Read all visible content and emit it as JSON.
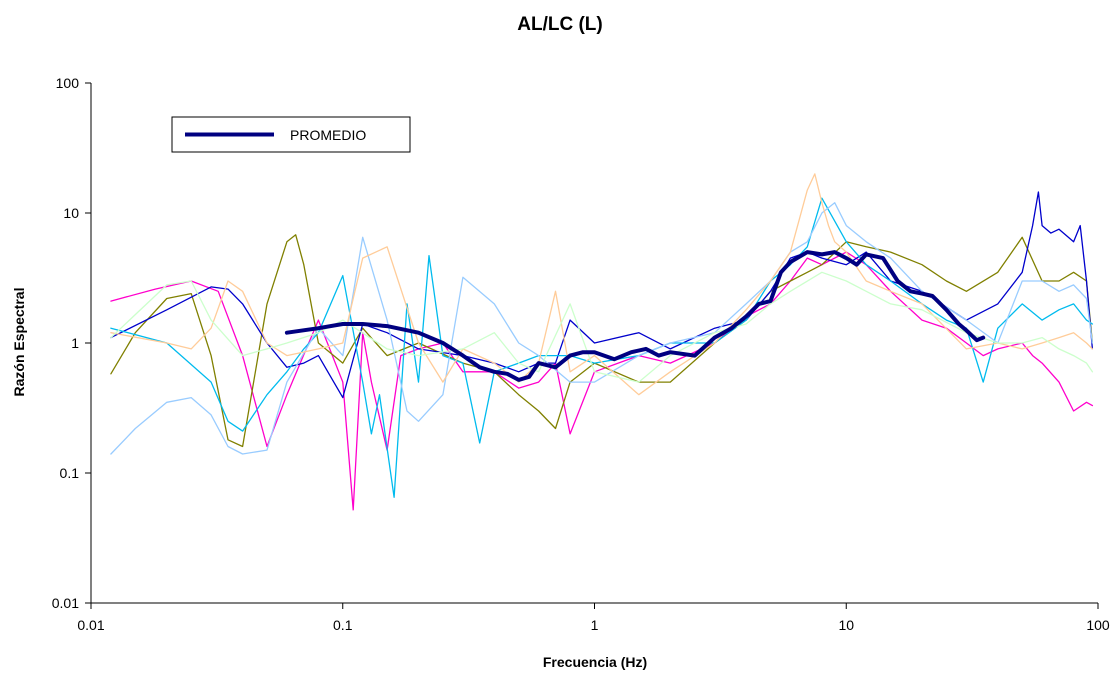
{
  "chart_data": {
    "type": "line",
    "title": "AL/LC (L)",
    "xlabel": "Frecuencia (Hz)",
    "ylabel": "Razón Espectral",
    "xscale": "log",
    "yscale": "log",
    "xlim": [
      0.01,
      100
    ],
    "ylim": [
      0.01,
      100
    ],
    "x_ticks": [
      {
        "value": 0.01,
        "label": "0.01"
      },
      {
        "value": 0.1,
        "label": "0.1"
      },
      {
        "value": 1,
        "label": "1"
      },
      {
        "value": 10,
        "label": "10"
      },
      {
        "value": 100,
        "label": "100"
      }
    ],
    "y_ticks": [
      {
        "value": 0.01,
        "label": "0.01"
      },
      {
        "value": 0.1,
        "label": "0.1"
      },
      {
        "value": 1,
        "label": "1"
      },
      {
        "value": 10,
        "label": "10"
      },
      {
        "value": 100,
        "label": "100"
      }
    ],
    "grid": false,
    "legend": {
      "position": "top-left",
      "entries": [
        "PROMEDIO"
      ]
    },
    "series": [
      {
        "name": "PROMEDIO",
        "color": "#000080",
        "x": [
          0.06,
          0.08,
          0.1,
          0.12,
          0.15,
          0.2,
          0.25,
          0.3,
          0.35,
          0.4,
          0.45,
          0.5,
          0.55,
          0.6,
          0.7,
          0.8,
          0.9,
          1.0,
          1.2,
          1.4,
          1.6,
          1.8,
          2.0,
          2.5,
          3.0,
          3.5,
          4.0,
          4.5,
          5.0,
          5.5,
          6.0,
          7.0,
          8.0,
          9.0,
          10.0,
          11.0,
          12.0,
          14.0,
          16.0,
          18.0,
          20.0,
          22.0,
          25.0,
          28.0,
          30.0,
          33.0,
          35.0
        ],
        "y": [
          1.2,
          1.3,
          1.4,
          1.4,
          1.35,
          1.2,
          1.0,
          0.8,
          0.65,
          0.6,
          0.58,
          0.52,
          0.55,
          0.7,
          0.65,
          0.8,
          0.85,
          0.85,
          0.75,
          0.85,
          0.9,
          0.8,
          0.85,
          0.8,
          1.1,
          1.3,
          1.6,
          2.0,
          2.1,
          3.5,
          4.2,
          5.0,
          4.8,
          5.0,
          4.5,
          4.0,
          4.8,
          4.5,
          3.0,
          2.5,
          2.4,
          2.3,
          1.8,
          1.4,
          1.25,
          1.05,
          1.1
        ]
      },
      {
        "color": "#FF00CC",
        "x": [
          0.012,
          0.018,
          0.025,
          0.032,
          0.04,
          0.05,
          0.06,
          0.08,
          0.1,
          0.11,
          0.12,
          0.13,
          0.15,
          0.17,
          0.2,
          0.25,
          0.3,
          0.4,
          0.5,
          0.6,
          0.7,
          0.8,
          1.0,
          1.5,
          2.0,
          3.0,
          4.0,
          5.0,
          6.0,
          7.0,
          8.0,
          10.0,
          12.0,
          15.0,
          20.0,
          25.0,
          30.0,
          35.0,
          40.0,
          50.0,
          55.0,
          60.0,
          70.0,
          80.0,
          90.0,
          95.0
        ],
        "y": [
          2.1,
          2.6,
          3.0,
          2.5,
          0.8,
          0.16,
          0.4,
          1.5,
          0.5,
          0.052,
          1.2,
          0.5,
          0.15,
          0.8,
          0.9,
          1.0,
          0.6,
          0.6,
          0.45,
          0.5,
          0.7,
          0.2,
          0.6,
          0.8,
          0.7,
          1.0,
          1.6,
          2.0,
          3.0,
          4.5,
          4.0,
          5.0,
          4.0,
          2.5,
          1.5,
          1.3,
          1.0,
          0.8,
          0.9,
          1.0,
          0.8,
          0.7,
          0.5,
          0.3,
          0.35,
          0.33
        ]
      },
      {
        "color": "#808000",
        "x": [
          0.012,
          0.015,
          0.02,
          0.025,
          0.03,
          0.035,
          0.04,
          0.05,
          0.06,
          0.065,
          0.07,
          0.08,
          0.1,
          0.12,
          0.15,
          0.2,
          0.3,
          0.4,
          0.5,
          0.6,
          0.7,
          0.8,
          1.0,
          1.5,
          2.0,
          3.0,
          4.0,
          5.0,
          6.0,
          7.0,
          8.0,
          10.0,
          12.0,
          15.0,
          20.0,
          25.0,
          30.0,
          40.0,
          50.0,
          60.0,
          70.0,
          80.0,
          90.0,
          95.0
        ],
        "y": [
          0.58,
          1.2,
          2.2,
          2.4,
          0.8,
          0.18,
          0.16,
          2.0,
          6.0,
          6.8,
          4.0,
          1.0,
          0.7,
          1.3,
          0.8,
          1.0,
          0.7,
          0.6,
          0.4,
          0.3,
          0.22,
          0.5,
          0.7,
          0.5,
          0.5,
          1.0,
          1.5,
          2.5,
          3.0,
          3.5,
          4.0,
          6.0,
          5.5,
          5.0,
          4.0,
          3.0,
          2.5,
          3.5,
          6.5,
          3.0,
          3.0,
          3.5,
          3.0,
          1.0
        ]
      },
      {
        "color": "#0000CC",
        "x": [
          0.012,
          0.02,
          0.03,
          0.035,
          0.04,
          0.05,
          0.06,
          0.07,
          0.08,
          0.1,
          0.12,
          0.15,
          0.2,
          0.3,
          0.4,
          0.5,
          0.6,
          0.7,
          0.8,
          1.0,
          1.5,
          2.0,
          3.0,
          4.0,
          5.0,
          6.0,
          7.0,
          8.0,
          10.0,
          12.0,
          15.0,
          20.0,
          30.0,
          40.0,
          50.0,
          55.0,
          58.0,
          60.0,
          65.0,
          70.0,
          80.0,
          85.0,
          90.0,
          95.0
        ],
        "y": [
          1.1,
          1.8,
          2.7,
          2.6,
          2.0,
          1.0,
          0.65,
          0.7,
          0.8,
          0.38,
          1.4,
          1.2,
          0.9,
          0.8,
          0.7,
          0.6,
          0.7,
          0.7,
          1.5,
          1.0,
          1.2,
          0.9,
          1.3,
          1.5,
          2.5,
          4.5,
          5.0,
          4.5,
          4.0,
          5.0,
          3.0,
          2.5,
          1.5,
          2.0,
          3.5,
          8.0,
          14.5,
          8.0,
          7.0,
          7.5,
          6.0,
          8.0,
          3.0,
          0.9
        ]
      },
      {
        "color": "#00BBEE",
        "x": [
          0.012,
          0.02,
          0.03,
          0.035,
          0.04,
          0.05,
          0.06,
          0.07,
          0.08,
          0.1,
          0.12,
          0.13,
          0.14,
          0.16,
          0.18,
          0.2,
          0.22,
          0.25,
          0.3,
          0.35,
          0.4,
          0.5,
          0.6,
          0.8,
          1.0,
          1.5,
          2.0,
          3.0,
          4.0,
          5.0,
          6.0,
          7.0,
          8.0,
          10.0,
          12.0,
          15.0,
          20.0,
          25.0,
          30.0,
          35.0,
          40.0,
          50.0,
          60.0,
          70.0,
          80.0,
          90.0,
          95.0
        ],
        "y": [
          1.3,
          1.0,
          0.5,
          0.25,
          0.21,
          0.4,
          0.6,
          0.9,
          1.2,
          3.3,
          0.5,
          0.2,
          0.4,
          0.065,
          2.0,
          0.5,
          4.7,
          0.8,
          0.7,
          0.17,
          0.6,
          0.7,
          0.8,
          0.8,
          0.7,
          0.8,
          1.0,
          1.0,
          1.5,
          3.0,
          4.0,
          5.5,
          13.0,
          6.0,
          4.0,
          3.0,
          2.0,
          1.5,
          1.3,
          0.5,
          1.3,
          2.0,
          1.5,
          1.8,
          2.0,
          1.5,
          1.4
        ]
      },
      {
        "color": "#99CCFF",
        "x": [
          0.012,
          0.015,
          0.02,
          0.025,
          0.03,
          0.035,
          0.04,
          0.05,
          0.06,
          0.08,
          0.1,
          0.12,
          0.15,
          0.18,
          0.2,
          0.25,
          0.3,
          0.4,
          0.5,
          0.6,
          0.8,
          1.0,
          1.5,
          2.0,
          3.0,
          4.0,
          5.0,
          6.0,
          7.0,
          8.0,
          9.0,
          10.0,
          12.0,
          15.0,
          20.0,
          30.0,
          40.0,
          50.0,
          60.0,
          70.0,
          80.0,
          90.0,
          95.0
        ],
        "y": [
          0.14,
          0.22,
          0.35,
          0.38,
          0.28,
          0.16,
          0.14,
          0.15,
          0.5,
          1.3,
          0.8,
          6.5,
          1.5,
          0.3,
          0.25,
          0.4,
          3.2,
          2.0,
          1.0,
          0.8,
          0.5,
          0.5,
          0.8,
          1.0,
          1.2,
          2.0,
          3.0,
          5.0,
          6.0,
          10.0,
          12.0,
          8.0,
          6.0,
          4.5,
          2.5,
          1.5,
          1.0,
          3.0,
          3.0,
          2.5,
          2.8,
          2.2,
          1.0
        ]
      },
      {
        "color": "#FFCC99",
        "x": [
          0.012,
          0.02,
          0.025,
          0.03,
          0.035,
          0.04,
          0.05,
          0.06,
          0.08,
          0.1,
          0.12,
          0.15,
          0.2,
          0.25,
          0.3,
          0.4,
          0.5,
          0.6,
          0.7,
          0.8,
          1.0,
          1.5,
          2.0,
          3.0,
          4.0,
          5.0,
          6.0,
          7.0,
          7.5,
          8.0,
          8.5,
          9.0,
          10.0,
          12.0,
          15.0,
          20.0,
          30.0,
          40.0,
          50.0,
          60.0,
          70.0,
          80.0,
          90.0,
          95.0
        ],
        "y": [
          1.2,
          1.0,
          0.9,
          1.3,
          3.0,
          2.5,
          1.0,
          0.8,
          0.9,
          1.0,
          4.5,
          5.5,
          1.0,
          0.5,
          0.9,
          0.7,
          0.5,
          0.7,
          2.5,
          0.6,
          0.8,
          0.4,
          0.6,
          1.0,
          1.8,
          3.0,
          5.0,
          15.0,
          20.0,
          12.0,
          8.0,
          6.0,
          5.0,
          3.0,
          2.5,
          2.0,
          0.9,
          1.0,
          0.9,
          1.0,
          1.1,
          1.2,
          1.0,
          0.9
        ]
      },
      {
        "color": "#CCFFCC",
        "x": [
          0.012,
          0.02,
          0.025,
          0.03,
          0.04,
          0.05,
          0.06,
          0.08,
          0.1,
          0.15,
          0.2,
          0.3,
          0.4,
          0.5,
          0.6,
          0.8,
          1.0,
          1.5,
          2.0,
          3.0,
          4.0,
          5.0,
          6.0,
          8.0,
          10.0,
          12.0,
          15.0,
          20.0,
          30.0,
          40.0,
          50.0,
          60.0,
          70.0,
          80.0,
          90.0,
          95.0
        ],
        "y": [
          1.1,
          2.8,
          3.0,
          1.5,
          0.8,
          0.9,
          1.0,
          1.2,
          1.5,
          0.9,
          0.8,
          0.9,
          1.2,
          0.7,
          0.6,
          2.0,
          0.6,
          0.5,
          0.8,
          1.2,
          1.4,
          2.0,
          2.5,
          3.5,
          3.0,
          2.5,
          2.0,
          1.8,
          1.2,
          1.0,
          1.0,
          1.1,
          0.9,
          0.8,
          0.7,
          0.6
        ]
      }
    ]
  }
}
